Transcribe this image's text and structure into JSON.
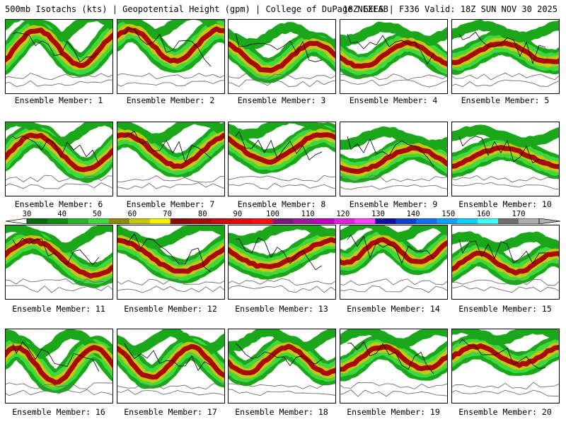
{
  "header": {
    "left": "500mb Isotachs (kts) | Geopotential Height (gpm) | College of DuPage NEXLAB",
    "right": "18Z GEFS | F336 Valid: 18Z SUN NOV 30 2025"
  },
  "colorbar": {
    "labels": [
      "30",
      "40",
      "50",
      "60",
      "70",
      "80",
      "90",
      "100",
      "110",
      "120",
      "130",
      "140",
      "150",
      "160",
      "170"
    ],
    "colors": [
      "#0b6a0b",
      "#0e8e0e",
      "#27b527",
      "#3fd83f",
      "#8a8a10",
      "#c7c712",
      "#f0f000",
      "#8b0a0a",
      "#a80a0a",
      "#c80a0a",
      "#e60a0a",
      "#ff1010",
      "#7a1a7a",
      "#9a1a9a",
      "#c000c0",
      "#e020e0",
      "#ff40ff",
      "#1010a0",
      "#1040d0",
      "#1070f0",
      "#10a0ff",
      "#10d0ff",
      "#40ffff",
      "#707070",
      "#b0b0b0"
    ]
  },
  "panels": [
    {
      "label": "Ensemble Member: 1"
    },
    {
      "label": "Ensemble Member: 2"
    },
    {
      "label": "Ensemble Member: 3"
    },
    {
      "label": "Ensemble Member: 4"
    },
    {
      "label": "Ensemble Member: 5"
    },
    {
      "label": "Ensemble Member: 6"
    },
    {
      "label": "Ensemble Member: 7"
    },
    {
      "label": "Ensemble Member: 8"
    },
    {
      "label": "Ensemble Member: 9"
    },
    {
      "label": "Ensemble Member: 10"
    },
    {
      "label": "Ensemble Member: 11"
    },
    {
      "label": "Ensemble Member: 12"
    },
    {
      "label": "Ensemble Member: 13"
    },
    {
      "label": "Ensemble Member: 14"
    },
    {
      "label": "Ensemble Member: 15"
    },
    {
      "label": "Ensemble Member: 16"
    },
    {
      "label": "Ensemble Member: 17"
    },
    {
      "label": "Ensemble Member: 18"
    },
    {
      "label": "Ensemble Member: 19"
    },
    {
      "label": "Ensemble Member: 20"
    }
  ]
}
